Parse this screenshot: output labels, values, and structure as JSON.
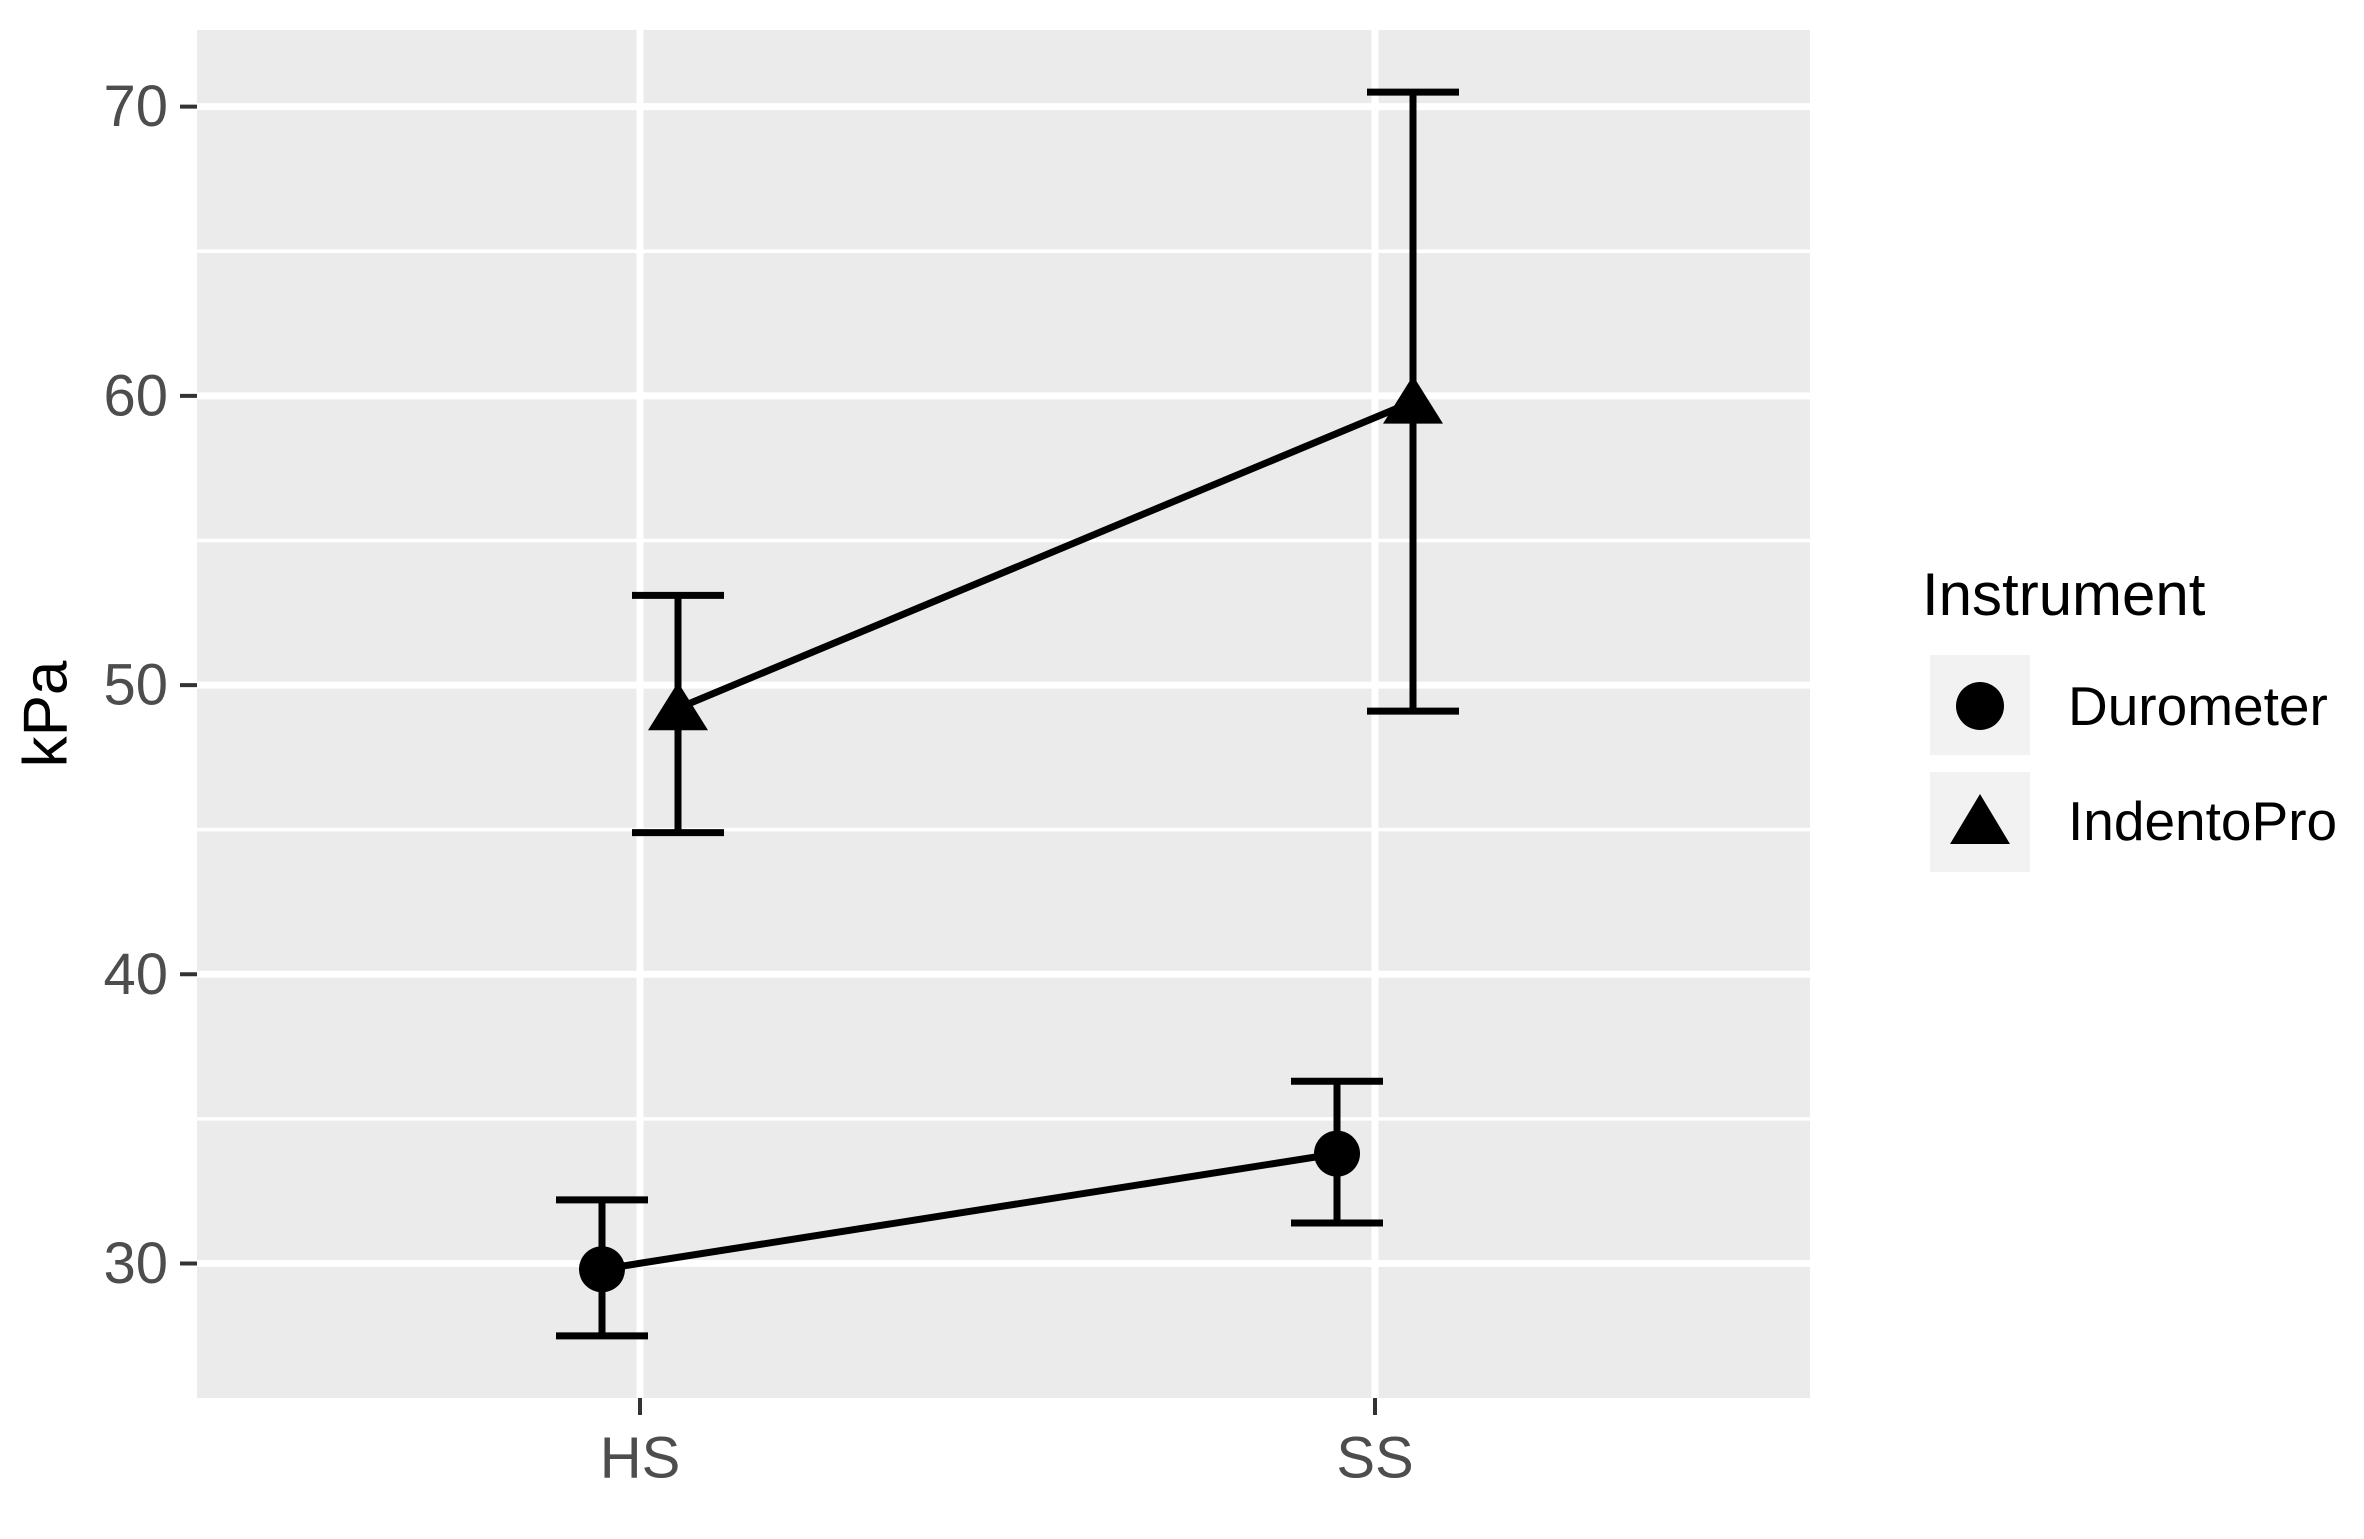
{
  "figure": {
    "background_color": "#FFFFFF",
    "panel_background_color": "#EBEBEB",
    "grid_color": "#FFFFFF",
    "data_color": "#000000",
    "axis_text_color": "#4D4D4D",
    "axis_title_color": "#000000",
    "tick_mark_color": "#333333",
    "legend_key_background_color": "#F2F2F2"
  },
  "axes": {
    "y_title": "kPa",
    "y_tick_labels": [
      "70",
      "60",
      "50",
      "40",
      "30"
    ],
    "x_tick_labels": [
      "HS",
      "SS"
    ]
  },
  "legend": {
    "title": "Instrument",
    "items": [
      {
        "label": "Durometer",
        "marker": "circle"
      },
      {
        "label": "IndentoPro",
        "marker": "triangle"
      }
    ]
  },
  "chart_data": {
    "type": "line",
    "subtype": "points-with-errorbars",
    "title": "",
    "xlabel": "",
    "ylabel": "kPa",
    "categories": [
      "HS",
      "SS"
    ],
    "ylim": [
      25.35,
      72.65
    ],
    "y_major_ticks": [
      30,
      40,
      50,
      60,
      70
    ],
    "y_minor_gridlines": [
      35,
      45,
      55,
      65
    ],
    "grid": true,
    "legend_title": "Instrument",
    "legend_position": "right",
    "series": [
      {
        "name": "Durometer",
        "marker": "circle",
        "values": [
          {
            "x": "HS",
            "mean": 29.8,
            "lower": 27.5,
            "upper": 32.2
          },
          {
            "x": "SS",
            "mean": 33.8,
            "lower": 31.4,
            "upper": 36.3
          }
        ]
      },
      {
        "name": "IndentoPro",
        "marker": "triangle",
        "values": [
          {
            "x": "HS",
            "mean": 49.2,
            "lower": 44.9,
            "upper": 53.1
          },
          {
            "x": "SS",
            "mean": 59.8,
            "lower": 49.1,
            "upper": 70.5
          }
        ]
      }
    ]
  }
}
